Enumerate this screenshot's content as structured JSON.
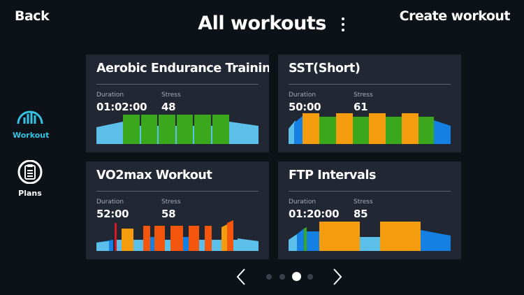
{
  "header": {
    "back_label": "Back",
    "title": "All workouts",
    "create_label": "Create workout"
  },
  "sidebar": {
    "items": [
      {
        "label": "Workout",
        "icon": "gauge-icon",
        "active": true
      },
      {
        "label": "Plans",
        "icon": "clipboard-icon",
        "active": false
      }
    ]
  },
  "metric_labels": {
    "duration": "Duration",
    "stress": "Stress"
  },
  "workouts": [
    {
      "title": "Aerobic Endurance Training",
      "duration": "01:02:00",
      "stress": "48"
    },
    {
      "title": "SST(Short)",
      "duration": "50:00",
      "stress": "61"
    },
    {
      "title": "VO2max Workout",
      "duration": "52:00",
      "stress": "58"
    },
    {
      "title": "FTP Intervals",
      "duration": "01:20:00",
      "stress": "85"
    }
  ],
  "pagination": {
    "pages": 4,
    "current": 3
  },
  "colors": {
    "accent": "#36c3e3",
    "zone_recovery": "#5bbfe9",
    "zone_endurance": "#1480e3",
    "zone_tempo": "#3aa71c",
    "zone_threshold": "#f59c0e",
    "zone_vo2": "#f4560e",
    "zone_anaerobic": "#d8181f"
  }
}
